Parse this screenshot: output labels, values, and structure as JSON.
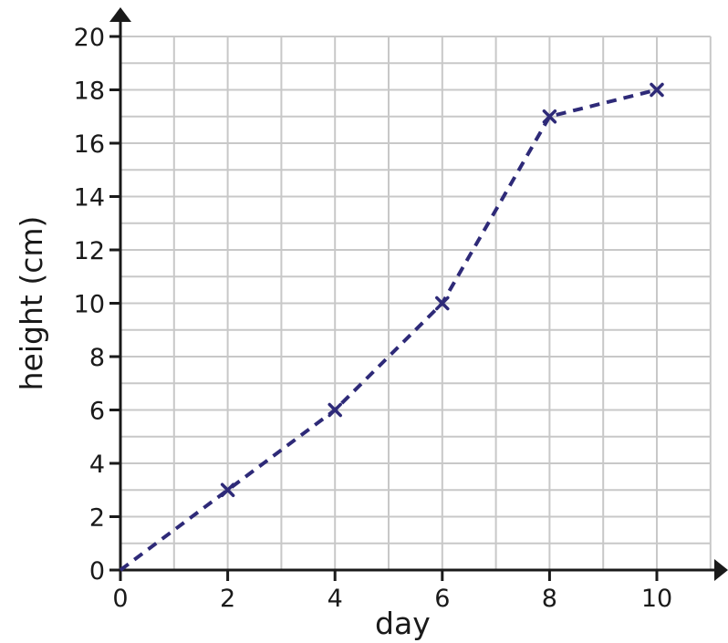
{
  "chart_data": {
    "type": "line",
    "xlabel": "day",
    "ylabel": "height (cm)",
    "xlim": [
      0,
      11
    ],
    "ylim": [
      0,
      20
    ],
    "x_ticks": [
      0,
      2,
      4,
      6,
      8,
      10
    ],
    "y_ticks": [
      0,
      2,
      4,
      6,
      8,
      10,
      12,
      14,
      16,
      18,
      20
    ],
    "grid": true,
    "line_style": "dashed",
    "marker": "x",
    "series_color": "#2e2a78",
    "series": [
      {
        "x": [
          0,
          2,
          4,
          6,
          8,
          10
        ],
        "y": [
          0,
          3,
          6,
          10,
          17,
          18
        ]
      }
    ]
  }
}
